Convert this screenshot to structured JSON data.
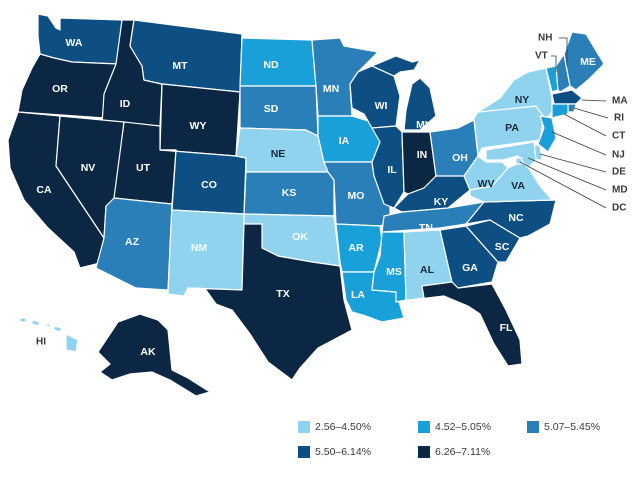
{
  "legend": {
    "items": [
      {
        "label": "2.56–4.50%",
        "color": "#8fd3ef"
      },
      {
        "label": "4.52–5.05%",
        "color": "#1aa0d8"
      },
      {
        "label": "5.07–5.45%",
        "color": "#2a7fb8"
      },
      {
        "label": "5.50–6.14%",
        "color": "#0d4f82"
      },
      {
        "label": "6.26–7.11%",
        "color": "#0b2743"
      }
    ]
  },
  "states": {
    "WA": {
      "label": "WA",
      "tier": 3
    },
    "OR": {
      "label": "OR",
      "tier": 4
    },
    "CA": {
      "label": "CA",
      "tier": 4
    },
    "ID": {
      "label": "ID",
      "tier": 4
    },
    "NV": {
      "label": "NV",
      "tier": 4
    },
    "MT": {
      "label": "MT",
      "tier": 3
    },
    "WY": {
      "label": "WY",
      "tier": 4
    },
    "UT": {
      "label": "UT",
      "tier": 4
    },
    "AZ": {
      "label": "AZ",
      "tier": 2
    },
    "CO": {
      "label": "CO",
      "tier": 3
    },
    "NM": {
      "label": "NM",
      "tier": 0
    },
    "ND": {
      "label": "ND",
      "tier": 1
    },
    "SD": {
      "label": "SD",
      "tier": 2
    },
    "NE": {
      "label": "NE",
      "tier": 0
    },
    "KS": {
      "label": "KS",
      "tier": 2
    },
    "OK": {
      "label": "OK",
      "tier": 0
    },
    "TX": {
      "label": "TX",
      "tier": 4
    },
    "MN": {
      "label": "MN",
      "tier": 2
    },
    "IA": {
      "label": "IA",
      "tier": 1
    },
    "MO": {
      "label": "MO",
      "tier": 2
    },
    "AR": {
      "label": "AR",
      "tier": 1
    },
    "LA": {
      "label": "LA",
      "tier": 1
    },
    "WI": {
      "label": "WI",
      "tier": 3
    },
    "IL": {
      "label": "IL",
      "tier": 3
    },
    "MI": {
      "label": "MI",
      "tier": 3
    },
    "IN": {
      "label": "IN",
      "tier": 4
    },
    "OH": {
      "label": "OH",
      "tier": 2
    },
    "KY": {
      "label": "KY",
      "tier": 3
    },
    "TN": {
      "label": "TN",
      "tier": 2
    },
    "MS": {
      "label": "MS",
      "tier": 1
    },
    "AL": {
      "label": "AL",
      "tier": 0
    },
    "GA": {
      "label": "GA",
      "tier": 3
    },
    "FL": {
      "label": "FL",
      "tier": 4
    },
    "SC": {
      "label": "SC",
      "tier": 3
    },
    "NC": {
      "label": "NC",
      "tier": 3
    },
    "VA": {
      "label": "VA",
      "tier": 0
    },
    "WV": {
      "label": "WV",
      "tier": 0
    },
    "PA": {
      "label": "PA",
      "tier": 0
    },
    "NY": {
      "label": "NY",
      "tier": 0
    },
    "VT": {
      "label": "VT",
      "tier": 1
    },
    "NH": {
      "label": "NH",
      "tier": 2
    },
    "ME": {
      "label": "ME",
      "tier": 2
    },
    "MA": {
      "label": "MA",
      "tier": 3
    },
    "RI": {
      "label": "RI",
      "tier": 2
    },
    "CT": {
      "label": "CT",
      "tier": 1
    },
    "NJ": {
      "label": "NJ",
      "tier": 1
    },
    "DE": {
      "label": "DE",
      "tier": 0
    },
    "MD": {
      "label": "MD",
      "tier": 0
    },
    "DC": {
      "label": "DC",
      "tier": 0
    },
    "AK": {
      "label": "AK",
      "tier": 4
    },
    "HI": {
      "label": "HI",
      "tier": 0
    }
  }
}
